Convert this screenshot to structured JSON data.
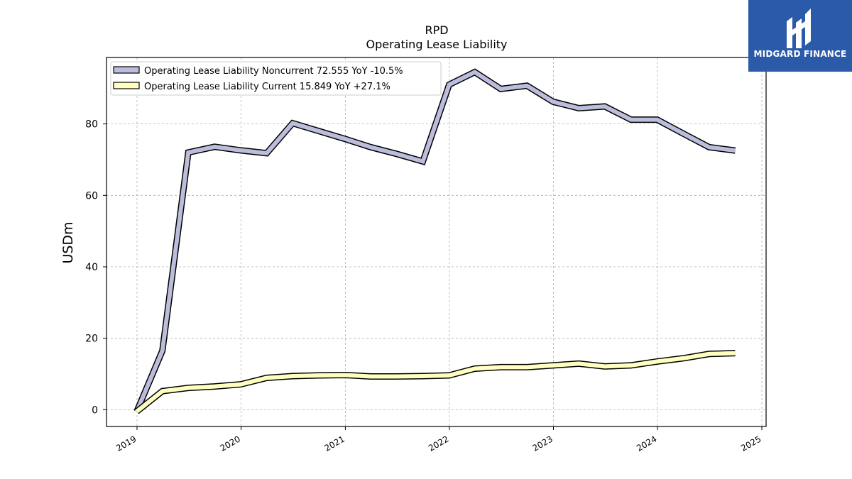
{
  "logo": {
    "text": "MIDGARD FINANCE",
    "bg_color": "#2a5aa8",
    "icon": "midgard-logo-icon"
  },
  "chart_data": {
    "type": "line",
    "title": "RPD",
    "subtitle": "Operating Lease Liability",
    "ylabel": "USDm",
    "xlabel": "",
    "xlim": [
      "2018-09-16",
      "2025-01-16"
    ],
    "ylim": [
      -4.7,
      98.6
    ],
    "x_ticks": [
      "2019",
      "2020",
      "2021",
      "2022",
      "2023",
      "2024",
      "2025"
    ],
    "y_ticks": [
      0,
      20,
      40,
      60,
      80
    ],
    "grid": true,
    "legend_position": "top-left",
    "series": [
      {
        "name": "Operating Lease Liability Noncurrent",
        "legend_label": "Operating Lease Liability Noncurrent  72.555 YoY -10.5%",
        "color": "#bcbddc",
        "x": [
          "2018-12-31",
          "2019-03-31",
          "2019-06-30",
          "2019-09-30",
          "2019-12-31",
          "2020-03-31",
          "2020-06-30",
          "2020-09-30",
          "2020-12-31",
          "2021-03-31",
          "2021-06-30",
          "2021-09-30",
          "2021-12-31",
          "2022-03-31",
          "2022-06-30",
          "2022-09-30",
          "2022-12-31",
          "2023-03-31",
          "2023-06-30",
          "2023-09-30",
          "2023-12-31",
          "2024-03-31",
          "2024-06-30",
          "2024-09-30"
        ],
        "values": [
          -0.5,
          16.5,
          72.0,
          73.6,
          72.6,
          71.8,
          80.2,
          78.0,
          75.8,
          73.5,
          71.6,
          69.5,
          91.0,
          94.5,
          89.8,
          90.7,
          86.2,
          84.4,
          84.9,
          81.2,
          81.2,
          77.3,
          73.5,
          72.555
        ]
      },
      {
        "name": "Operating Lease Liability Current",
        "legend_label": "Operating Lease Liability Current  15.849 YoY +27.1%",
        "color": "#ffffbf",
        "x": [
          "2018-12-31",
          "2019-03-31",
          "2019-06-30",
          "2019-09-30",
          "2019-12-31",
          "2020-03-31",
          "2020-06-30",
          "2020-09-30",
          "2020-12-31",
          "2021-03-31",
          "2021-06-30",
          "2021-09-30",
          "2021-12-31",
          "2022-03-31",
          "2022-06-30",
          "2022-09-30",
          "2022-12-31",
          "2023-03-31",
          "2023-06-30",
          "2023-09-30",
          "2023-12-31",
          "2024-03-31",
          "2024-06-30",
          "2024-09-30"
        ],
        "values": [
          -0.5,
          5.2,
          6.1,
          6.5,
          7.1,
          8.9,
          9.4,
          9.6,
          9.7,
          9.3,
          9.3,
          9.4,
          9.6,
          11.5,
          11.9,
          11.9,
          12.4,
          12.9,
          12.1,
          12.4,
          13.5,
          14.4,
          15.6,
          15.849
        ]
      }
    ]
  }
}
